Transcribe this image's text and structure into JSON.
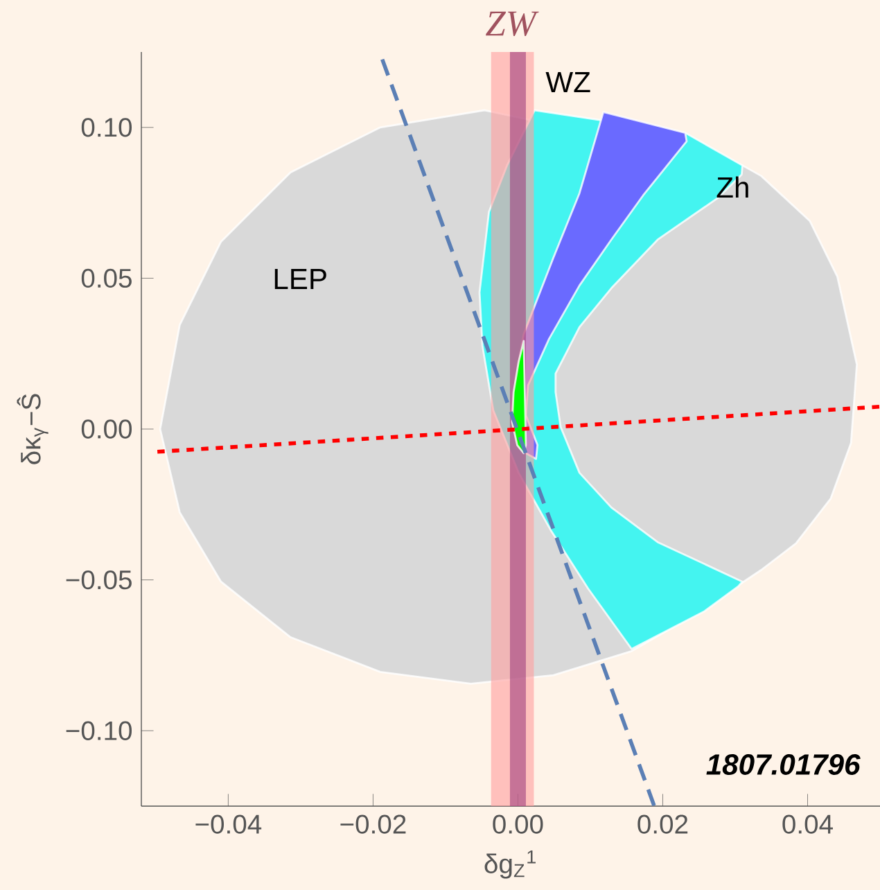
{
  "chart_data": {
    "type": "area",
    "title": "ZW",
    "xlabel": "δg$_{Z}$$^{1}$",
    "ylabel": "δκ$_{γ}$−Ŝ",
    "xlim": [
      -0.052,
      0.05
    ],
    "ylim": [
      -0.125,
      0.125
    ],
    "xticks": [
      {
        "value": -0.04,
        "label": "−0.04"
      },
      {
        "value": -0.02,
        "label": "−0.02"
      },
      {
        "value": 0,
        "label": "0.00"
      },
      {
        "value": 0.02,
        "label": "0.02"
      },
      {
        "value": 0.04,
        "label": "0.04"
      }
    ],
    "yticks": [
      {
        "value": -0.1,
        "label": "−0.10"
      },
      {
        "value": -0.05,
        "label": "−0.05"
      },
      {
        "value": 0,
        "label": "0.00"
      },
      {
        "value": 0.05,
        "label": "0.05"
      },
      {
        "value": 0.1,
        "label": "0.10"
      }
    ],
    "series": [
      {
        "color": "#d9d9d9",
        "x": [
          -0.0494,
          -0.0467,
          -0.041,
          -0.0314,
          -0.019,
          -0.0046,
          0.031,
          0.0336,
          0.0403,
          0.0441,
          0.0468,
          0.046,
          0.0432,
          0.0384,
          0.0336,
          0.024,
          0.0157,
          0.0049,
          -0.0065,
          -0.019,
          -0.0314,
          -0.041,
          -0.0467
        ],
        "values": [
          0,
          0.0345,
          0.0621,
          0.0851,
          0.1,
          0.1057,
          0.0874,
          0.0839,
          0.069,
          0.0506,
          0.0214,
          -0.0046,
          -0.023,
          -0.0379,
          -0.0467,
          -0.0621,
          -0.0736,
          -0.0816,
          -0.0844,
          -0.0805,
          -0.069,
          -0.0506,
          -0.0276
        ]
      },
      {
        "color": "#44f4f0",
        "x": [
          0.0023,
          0.0231,
          0.031,
          0.0309,
          0.0276,
          0.0193,
          0.0129,
          0.0085,
          0.0052,
          0.0052,
          0.0059,
          0.0085,
          0.0129,
          0.0193,
          0.031,
          0.0304,
          0.0257,
          0.0157,
          0.0097,
          0.0046,
          0.0001,
          -0.0034,
          -0.0049,
          -0.0053,
          -0.004,
          -0.0015
        ],
        "values": [
          0.1057,
          0.0982,
          0.0874,
          0.0844,
          0.0766,
          0.0628,
          0.0467,
          0.0338,
          0.0184,
          0.0122,
          0.0007,
          -0.0145,
          -0.026,
          -0.0375,
          -0.0506,
          -0.0522,
          -0.0605,
          -0.0729,
          -0.0529,
          -0.0338,
          -0.0145,
          0.0062,
          0.0276,
          0.0453,
          0.072,
          0.0874
        ]
      },
      {
        "color": "#6a6aff",
        "x": [
          0.0118,
          0.0231,
          0.0233,
          0.0173,
          0.0129,
          0.0085,
          0.0043,
          0.0014,
          0.0011,
          0.0027,
          0.0025,
          0.0011,
          0.0001,
          -0.001,
          -0.0001,
          0.0008,
          0.0049,
          0.0085
        ],
        "values": [
          0.1051,
          0.0982,
          0.0954,
          0.0775,
          0.0628,
          0.0476,
          0.0299,
          0.0145,
          0.0046,
          -0.0053,
          -0.0099,
          -0.008,
          -0.0062,
          0.0046,
          0.02,
          0.0315,
          0.0568,
          0.0782
        ]
      },
      {
        "color": "#00ff00",
        "x": [
          0.0008,
          0.0011,
          0.0008,
          -0.0001,
          -0.0008,
          -0.0006,
          0.0001
        ],
        "values": [
          0.0292,
          -0.0053,
          -0.008,
          -0.0053,
          0.0023,
          0.0122,
          0.0223
        ]
      },
      {
        "type": "line",
        "color": "#5b7fb5",
        "line_style": "dashed",
        "x": [
          -0.0191,
          0.0188
        ],
        "values": [
          0.125,
          -0.1248
        ]
      },
      {
        "type": "line",
        "color": "#ff0000",
        "line_style": "dotted",
        "x": [
          -0.0503,
          0.0499
        ],
        "values": [
          -0.0076,
          0.0074
        ]
      }
    ],
    "bands": [
      {
        "axis": "x",
        "from": -0.0037,
        "to": 0.0022,
        "color": "#ff9e9e"
      },
      {
        "axis": "x",
        "from": -0.0011,
        "to": 0.0011,
        "color": "#a0407f"
      }
    ],
    "annotations": [
      "LEP",
      "WZ",
      "Zh",
      "1807.01796"
    ]
  }
}
